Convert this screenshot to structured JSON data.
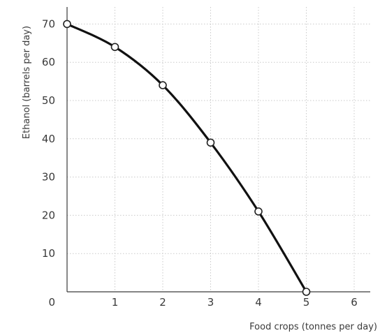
{
  "chart_data": {
    "type": "line",
    "title": "",
    "xlabel": "Food crops (tonnes per day)",
    "ylabel": "Ethanol (barrels per day)",
    "xlim": [
      0,
      6
    ],
    "ylim": [
      0,
      70
    ],
    "x_ticks": [
      0,
      1,
      2,
      3,
      4,
      5,
      6
    ],
    "y_ticks": [
      0,
      10,
      20,
      30,
      40,
      50,
      60,
      70
    ],
    "grid": true,
    "legend": "none",
    "series": [
      {
        "name": "",
        "color": "#111111",
        "points": [
          {
            "x": 0,
            "y": 70
          },
          {
            "x": 1,
            "y": 64
          },
          {
            "x": 2,
            "y": 54
          },
          {
            "x": 3,
            "y": 39
          },
          {
            "x": 4,
            "y": 21
          },
          {
            "x": 5,
            "y": 0
          }
        ]
      }
    ]
  }
}
